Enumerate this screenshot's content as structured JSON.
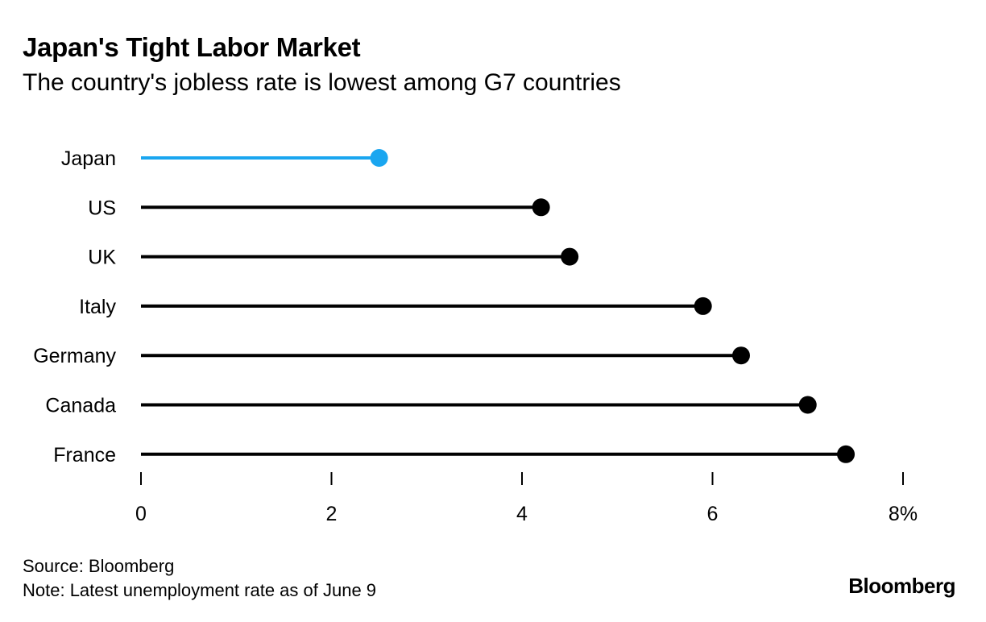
{
  "header": {
    "title": "Japan's Tight Labor Market",
    "subtitle": "The country's jobless rate is lowest among G7 countries"
  },
  "chart_data": {
    "type": "lollipop",
    "title": "Japan's Tight Labor Market",
    "subtitle": "The country's jobless rate is lowest among G7 countries",
    "categories": [
      "Japan",
      "US",
      "UK",
      "Italy",
      "Germany",
      "Canada",
      "France"
    ],
    "values": [
      2.5,
      4.2,
      4.5,
      5.9,
      6.3,
      7.0,
      7.4
    ],
    "highlight": "Japan",
    "highlight_color": "#1aa6f0",
    "default_color": "#000000",
    "xlim": [
      0,
      8
    ],
    "xticks": [
      0,
      2,
      4,
      6,
      8
    ],
    "xtick_labels": [
      "0",
      "2",
      "4",
      "6",
      "8%"
    ],
    "xlabel": "",
    "ylabel": "",
    "grid": false
  },
  "footer": {
    "source": "Source: Bloomberg",
    "note": "Note: Latest unemployment rate as of June 9",
    "logo": "Bloomberg"
  }
}
